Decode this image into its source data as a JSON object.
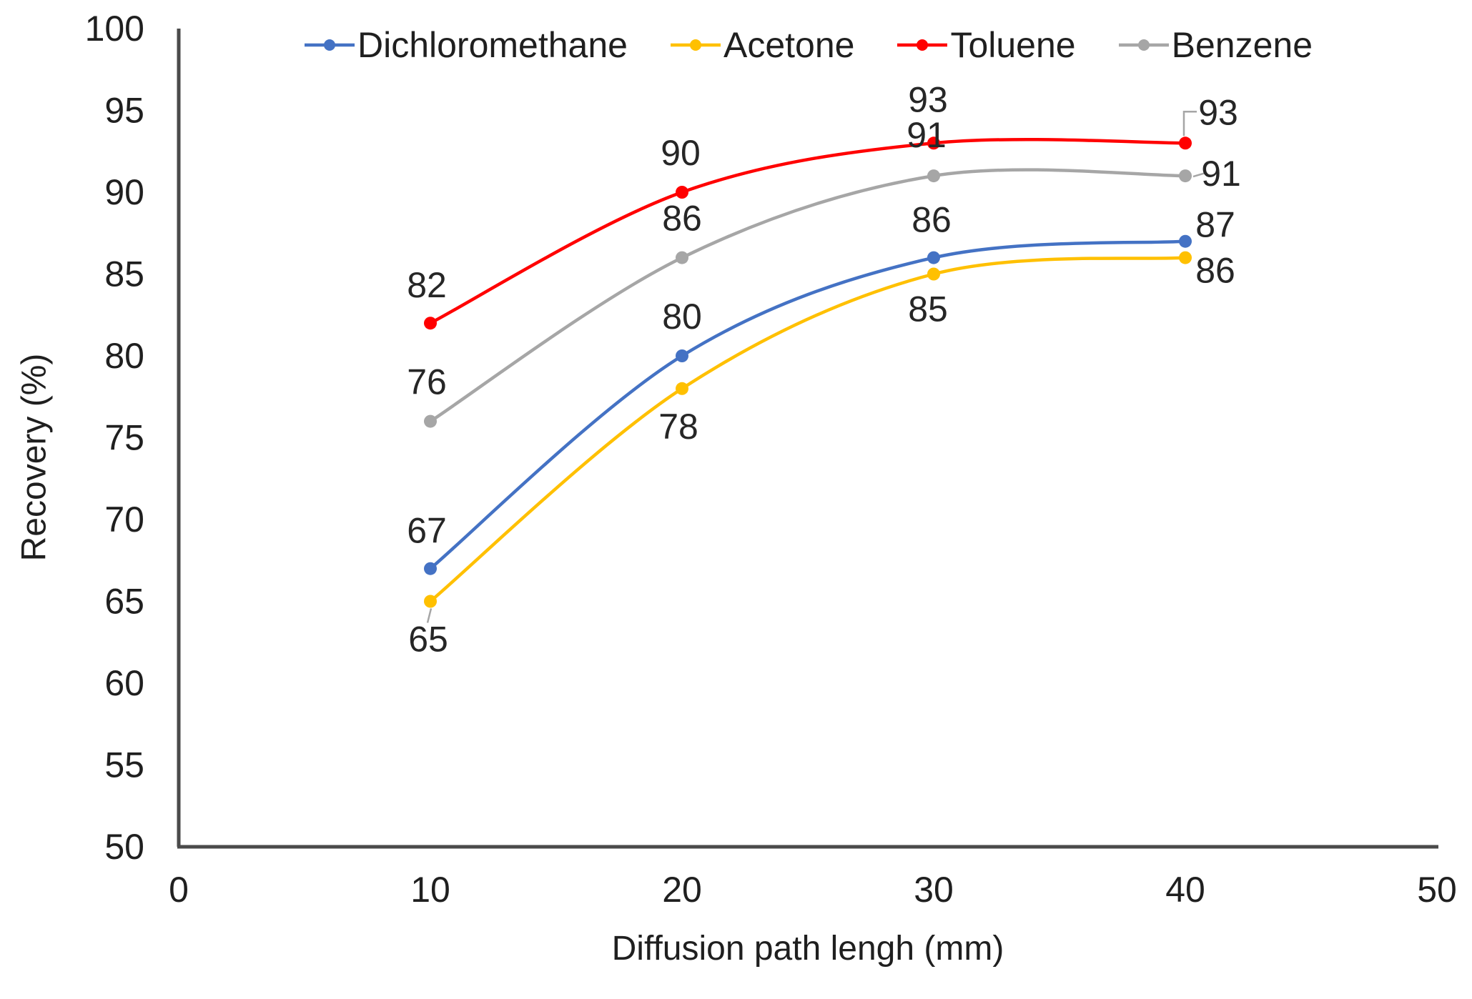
{
  "chart_data": {
    "type": "line",
    "title": "",
    "xlabel": "Diffusion path lengh (mm)",
    "ylabel": "Recovery (%)",
    "x": [
      10,
      20,
      30,
      40
    ],
    "xlim": [
      0,
      50
    ],
    "ylim": [
      50,
      100
    ],
    "x_ticks": [
      0,
      10,
      20,
      30,
      40,
      50
    ],
    "y_ticks": [
      50,
      55,
      60,
      65,
      70,
      75,
      80,
      85,
      90,
      95,
      100
    ],
    "grid": false,
    "legend_position": "top",
    "line_style": "smooth-with-markers",
    "data_labels_shown": true,
    "series": [
      {
        "name": "Dichloromethane",
        "color": "#4472C4",
        "values": [
          67,
          80,
          86,
          87
        ]
      },
      {
        "name": "Acetone",
        "color": "#FFC000",
        "values": [
          65,
          78,
          85,
          86
        ]
      },
      {
        "name": "Toluene",
        "color": "#FF0000",
        "values": [
          82,
          90,
          93,
          93
        ]
      },
      {
        "name": "Benzene",
        "color": "#A6A6A6",
        "values": [
          76,
          86,
          91,
          91
        ]
      }
    ],
    "colors": {
      "axis": "#4a4a4a",
      "leader_line": "#A6A6A6",
      "text": "#1f1f1f",
      "background": "#ffffff"
    }
  }
}
